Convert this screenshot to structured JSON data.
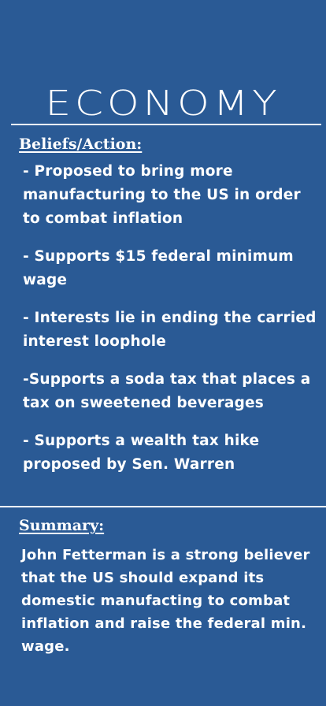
{
  "title": "ECONOMY",
  "beliefs": {
    "heading": "Beliefs/Action:",
    "items": [
      "- Proposed to bring more manufacturing to the US in order to combat inflation",
      "- Supports $15 federal minimum wage",
      "- Interests lie in ending the carried interest loophole",
      "-Supports a soda tax that places a tax on sweetened beverages",
      "- Supports a wealth tax hike proposed by Sen. Warren"
    ]
  },
  "summary": {
    "heading": "Summary:",
    "text": "John Fetterman is a strong believer that the US should expand its domestic manufacting to combat inflation and raise the federal min. wage."
  },
  "colors": {
    "background": "#2a5a95",
    "text": "#ffffff"
  }
}
